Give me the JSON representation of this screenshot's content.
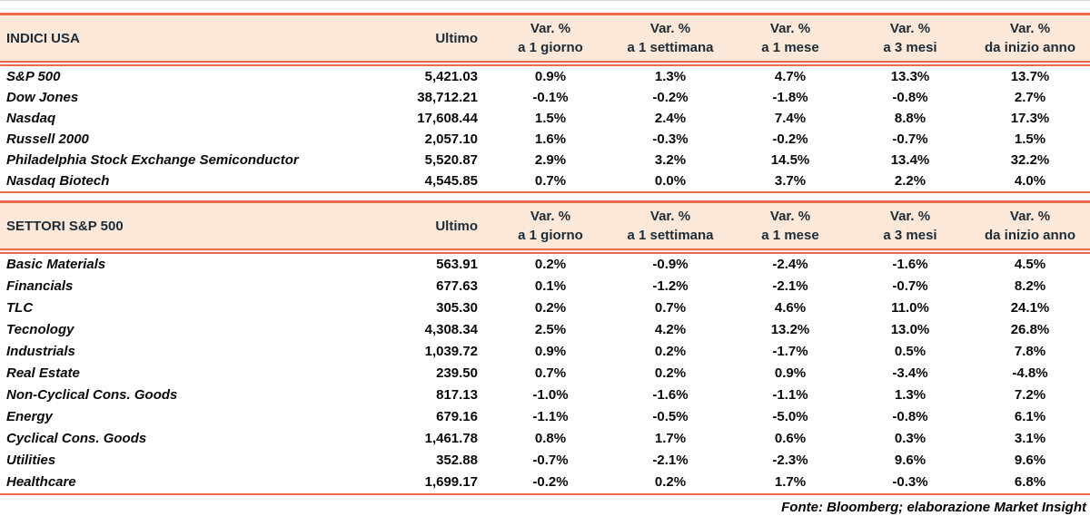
{
  "colors": {
    "accent": "#ed6b4d",
    "header_bg": "#fce8d9",
    "header_text": "#1c2b36",
    "body_text": "#0a0a0a"
  },
  "columns": {
    "ultimo": "Ultimo",
    "var_cols": [
      {
        "line1": "Var. %",
        "line2": "a 1 giorno"
      },
      {
        "line1": "Var. %",
        "line2": "a 1 settimana"
      },
      {
        "line1": "Var. %",
        "line2": "a 1 mese"
      },
      {
        "line1": "Var. %",
        "line2": "a 3 mesi"
      },
      {
        "line1": "Var. %",
        "line2": "da inizio anno"
      }
    ]
  },
  "tables": [
    {
      "title": "INDICI USA",
      "rows": [
        {
          "name": "S&P 500",
          "ultimo": "5,421.03",
          "vars": [
            "0.9%",
            "1.3%",
            "4.7%",
            "13.3%",
            "13.7%"
          ]
        },
        {
          "name": "Dow Jones",
          "ultimo": "38,712.21",
          "vars": [
            "-0.1%",
            "-0.2%",
            "-1.8%",
            "-0.8%",
            "2.7%"
          ]
        },
        {
          "name": "Nasdaq",
          "ultimo": "17,608.44",
          "vars": [
            "1.5%",
            "2.4%",
            "7.4%",
            "8.8%",
            "17.3%"
          ]
        },
        {
          "name": "Russell 2000",
          "ultimo": "2,057.10",
          "vars": [
            "1.6%",
            "-0.3%",
            "-0.2%",
            "-0.7%",
            "1.5%"
          ]
        },
        {
          "name": "Philadelphia Stock Exchange Semiconductor",
          "ultimo": "5,520.87",
          "vars": [
            "2.9%",
            "3.2%",
            "14.5%",
            "13.4%",
            "32.2%"
          ]
        },
        {
          "name": "Nasdaq Biotech",
          "ultimo": "4,545.85",
          "vars": [
            "0.7%",
            "0.0%",
            "3.7%",
            "2.2%",
            "4.0%"
          ]
        }
      ]
    },
    {
      "title": "SETTORI S&P 500",
      "rows": [
        {
          "name": "Basic Materials",
          "ultimo": "563.91",
          "vars": [
            "0.2%",
            "-0.9%",
            "-2.4%",
            "-1.6%",
            "4.5%"
          ]
        },
        {
          "name": "Financials",
          "ultimo": "677.63",
          "vars": [
            "0.1%",
            "-1.2%",
            "-2.1%",
            "-0.7%",
            "8.2%"
          ]
        },
        {
          "name": "TLC",
          "ultimo": "305.30",
          "vars": [
            "0.2%",
            "0.7%",
            "4.6%",
            "11.0%",
            "24.1%"
          ]
        },
        {
          "name": "Tecnology",
          "ultimo": "4,308.34",
          "vars": [
            "2.5%",
            "4.2%",
            "13.2%",
            "13.0%",
            "26.8%"
          ]
        },
        {
          "name": "Industrials",
          "ultimo": "1,039.72",
          "vars": [
            "0.9%",
            "0.2%",
            "-1.7%",
            "0.5%",
            "7.8%"
          ]
        },
        {
          "name": "Real Estate",
          "ultimo": "239.50",
          "vars": [
            "0.7%",
            "0.2%",
            "0.9%",
            "-3.4%",
            "-4.8%"
          ]
        },
        {
          "name": "Non-Cyclical Cons. Goods",
          "ultimo": "817.13",
          "vars": [
            "-1.0%",
            "-1.6%",
            "-1.1%",
            "1.3%",
            "7.2%"
          ]
        },
        {
          "name": "Energy",
          "ultimo": "679.16",
          "vars": [
            "-1.1%",
            "-0.5%",
            "-5.0%",
            "-0.8%",
            "6.1%"
          ]
        },
        {
          "name": "Cyclical Cons. Goods",
          "ultimo": "1,461.78",
          "vars": [
            "0.8%",
            "1.7%",
            "0.6%",
            "0.3%",
            "3.1%"
          ]
        },
        {
          "name": "Utilities",
          "ultimo": "352.88",
          "vars": [
            "-0.7%",
            "-2.1%",
            "-2.3%",
            "9.6%",
            "9.6%"
          ]
        },
        {
          "name": "Healthcare",
          "ultimo": "1,699.17",
          "vars": [
            "-0.2%",
            "0.2%",
            "1.7%",
            "-0.3%",
            "6.8%"
          ]
        }
      ]
    }
  ],
  "footer": {
    "source": "Fonte: Bloomberg; elaborazione Market Insight"
  }
}
